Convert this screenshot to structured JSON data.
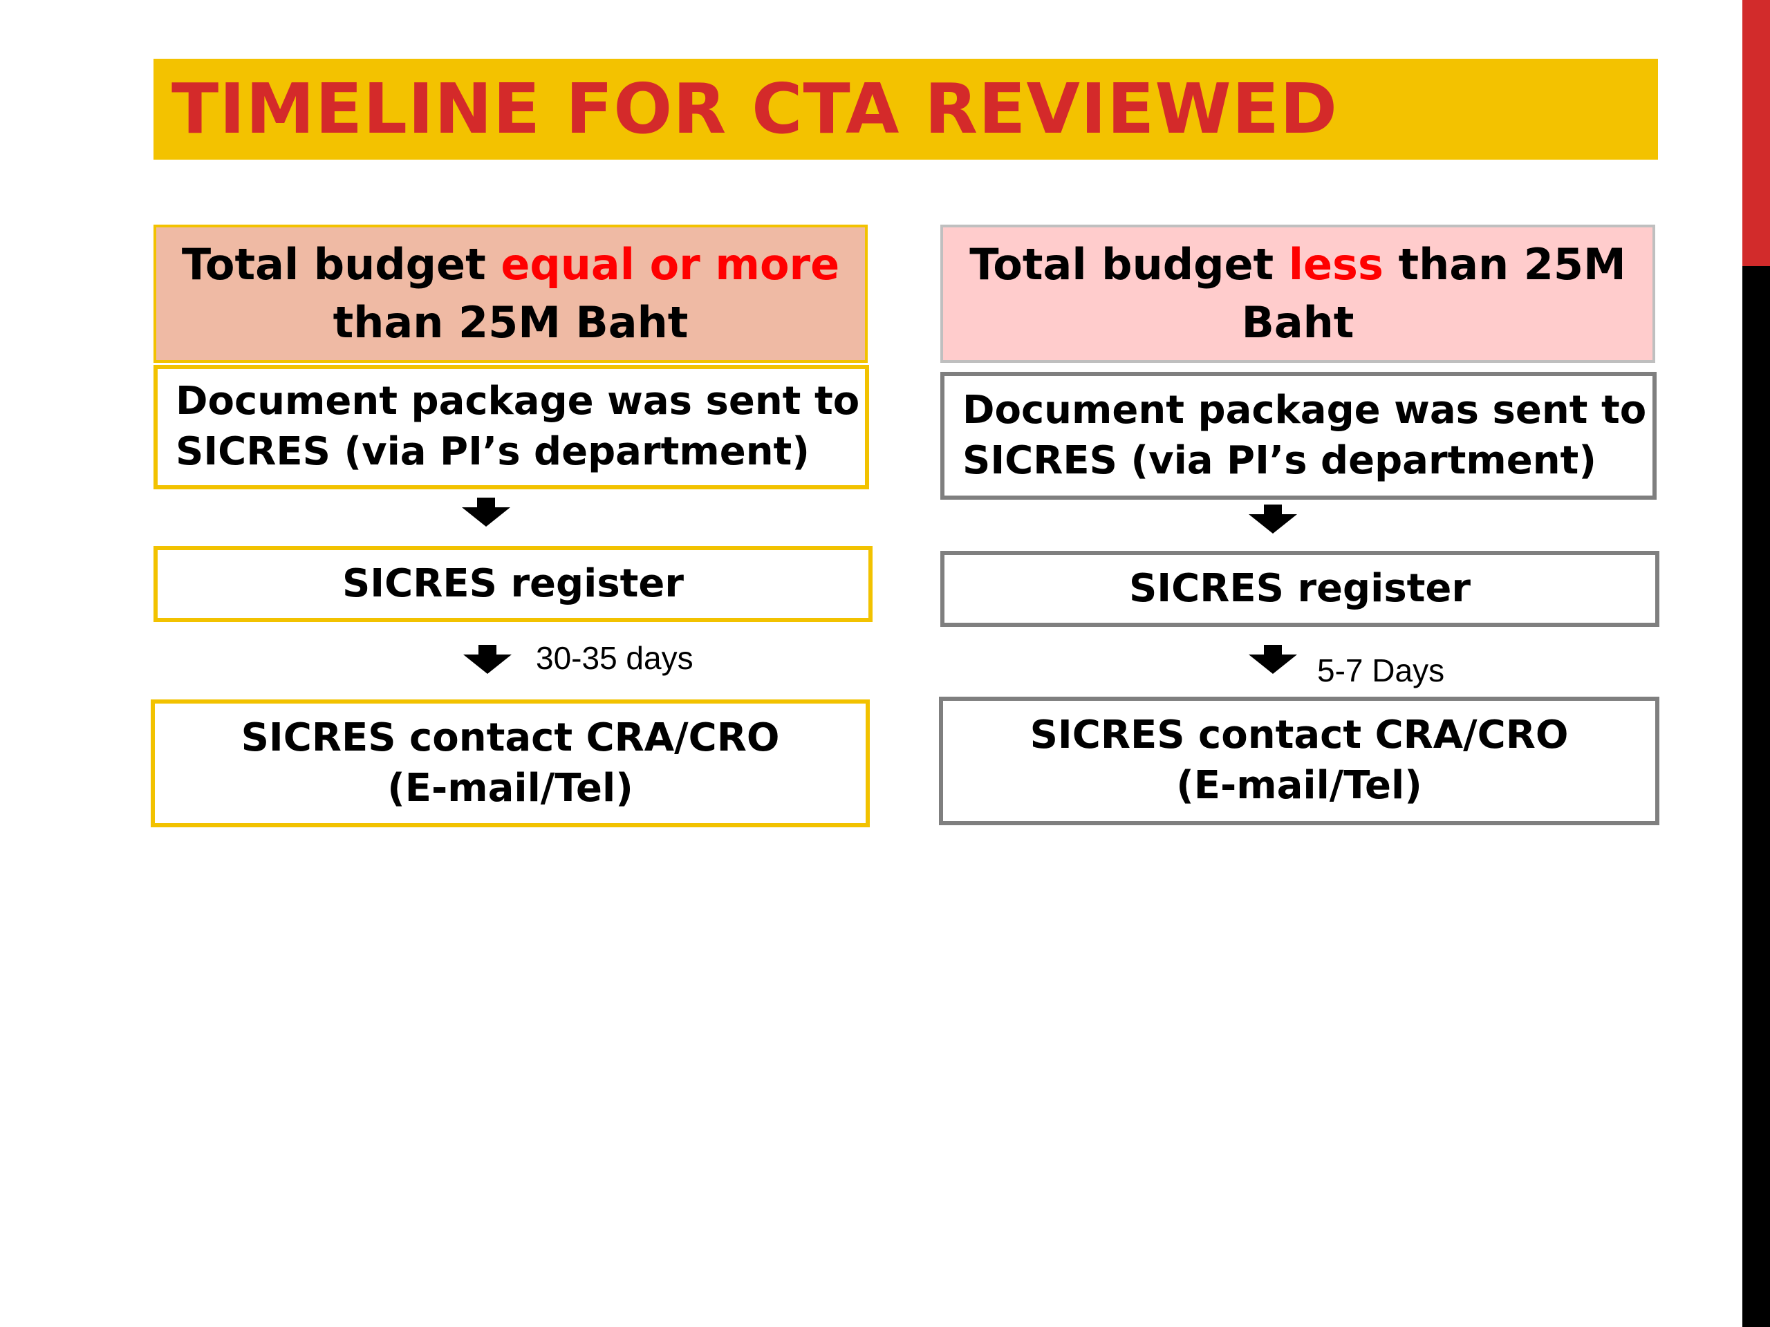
{
  "title": "TIMELINE FOR CTA REVIEWED",
  "left_column": {
    "header_part1": "Total budget ",
    "header_highlight": "equal or more",
    "header_part2": "than 25M Baht",
    "step1_line1": "Document package was sent to",
    "step1_line2": "SICRES (via PI’s department)",
    "step2": "SICRES register",
    "duration": "30-35 days",
    "step3_line1": "SICRES contact CRA/CRO",
    "step3_line2": "(E-mail/Tel)"
  },
  "right_column": {
    "header_part1": "Total budget ",
    "header_highlight": "less",
    "header_part2": " than 25M",
    "header_line2": "Baht",
    "step1_line1": "Document package was sent to",
    "step1_line2": "SICRES (via PI’s department)",
    "step2": "SICRES register",
    "duration": "5-7 Days",
    "step3_line1": "SICRES contact CRA/CRO",
    "step3_line2": "(E-mail/Tel)"
  },
  "colors": {
    "title_background": "#f3c200",
    "title_text": "#d42a2a",
    "left_border": "#f2c200",
    "right_border": "#7f7f7f",
    "highlight": "#ff0000",
    "left_header_fill": "#efbaa4",
    "right_header_fill": "#ffcccc",
    "edge_bar_top": "#d22b2b",
    "edge_bar_bottom": "#000000"
  }
}
